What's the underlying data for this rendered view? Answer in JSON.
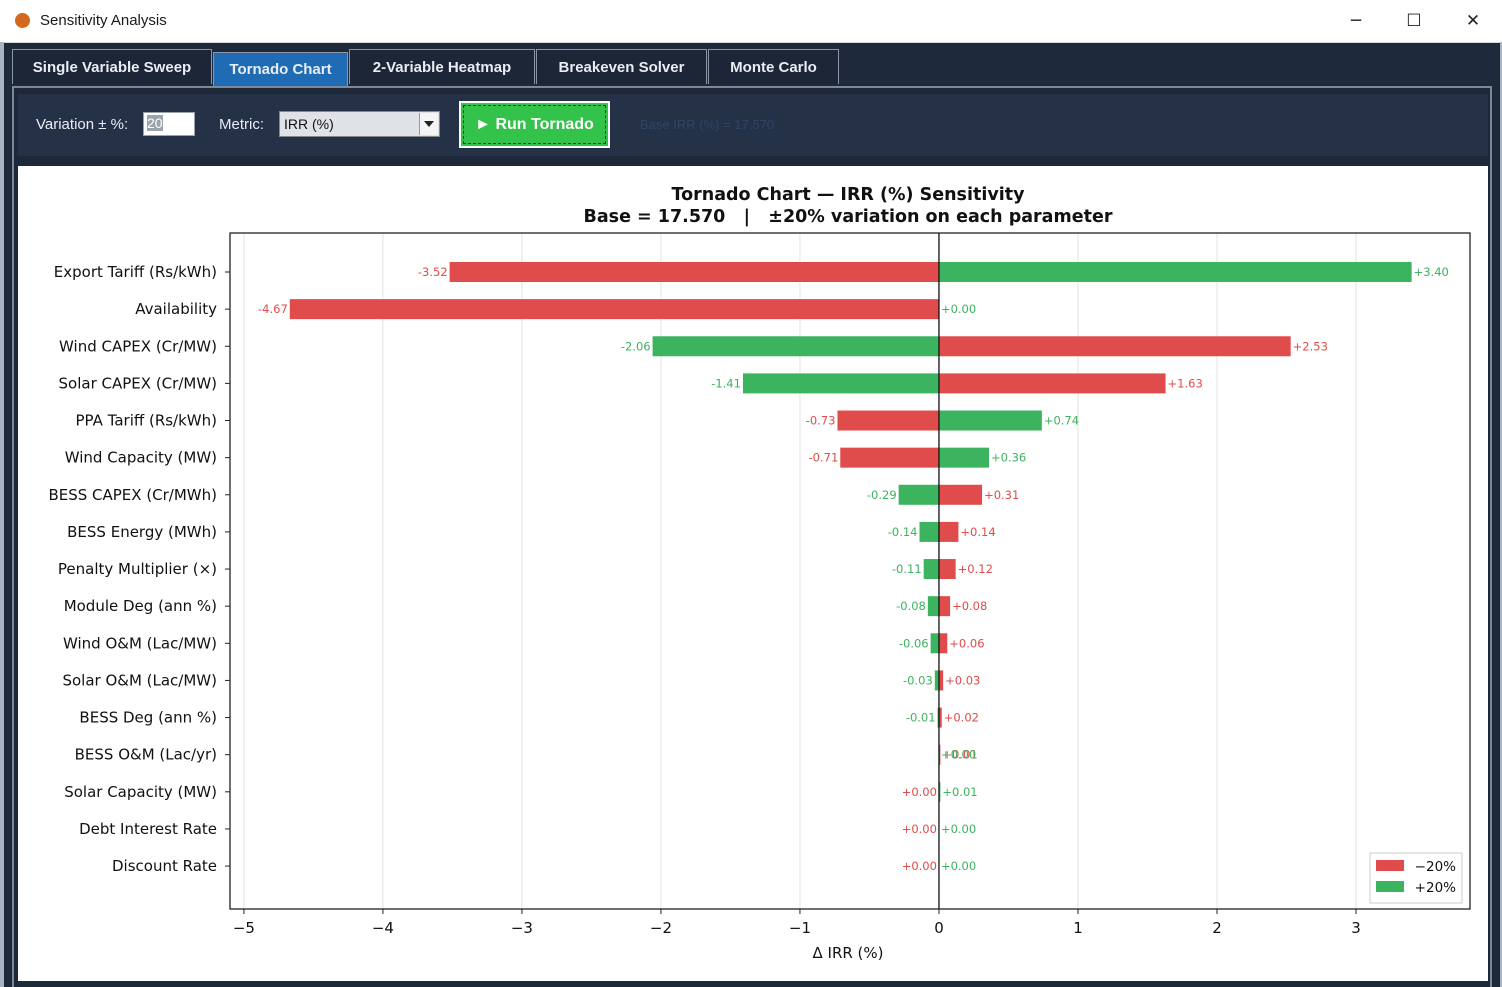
{
  "window": {
    "title": "Sensitivity Analysis",
    "minimize_glyph": "─",
    "maximize_glyph": "☐",
    "close_glyph": "✕"
  },
  "tabs": [
    {
      "label": "Single Variable Sweep",
      "active": false
    },
    {
      "label": "Tornado Chart",
      "active": true
    },
    {
      "label": "2-Variable Heatmap",
      "active": false
    },
    {
      "label": "Breakeven Solver",
      "active": false
    },
    {
      "label": "Monte Carlo",
      "active": false
    }
  ],
  "controls": {
    "variation_label": "Variation ± %:",
    "variation_value": "20",
    "metric_label": "Metric:",
    "metric_value": "IRR (%)",
    "run_label": "► Run Tornado",
    "status_text": "Base IRR (%) = 17.570"
  },
  "colors": {
    "minus": "#e04b4b",
    "plus": "#3cb35f",
    "run_button": "#33c24a",
    "active_tab": "#1f6cb4"
  },
  "chart_data": {
    "type": "bar",
    "orientation": "horizontal",
    "title": "Tornado Chart — IRR (%) Sensitivity",
    "subtitle": "Base = 17.570   |   ±20% variation on each parameter",
    "xlabel": "Δ IRR (%)",
    "ylabel": "",
    "xlim": [
      -5.1,
      3.82
    ],
    "xticks": [
      -5,
      -4,
      -3,
      -2,
      -1,
      0,
      1,
      2,
      3
    ],
    "xtick_labels": [
      "−5",
      "−4",
      "−3",
      "−2",
      "−1",
      "0",
      "1",
      "2",
      "3"
    ],
    "grid": "vertical",
    "legend_position": "bottom-right",
    "categories": [
      "Export Tariff (Rs/kWh)",
      "Availability",
      "Wind CAPEX (Cr/MW)",
      "Solar CAPEX (Cr/MW)",
      "PPA Tariff (Rs/kWh)",
      "Wind Capacity (MW)",
      "BESS CAPEX (Cr/MWh)",
      "BESS Energy (MWh)",
      "Penalty Multiplier (×)",
      "Module Deg (ann %)",
      "Wind O&M (Lac/MW)",
      "Solar O&M (Lac/MW)",
      "BESS Deg (ann %)",
      "BESS O&M (Lac/yr)",
      "Solar Capacity (MW)",
      "Debt Interest Rate",
      "Discount Rate"
    ],
    "series": [
      {
        "name": "−20%",
        "color": "#e04b4b",
        "values": [
          -3.52,
          -4.67,
          2.53,
          1.63,
          -0.73,
          -0.71,
          0.31,
          0.14,
          0.12,
          0.08,
          0.06,
          0.03,
          0.02,
          0.01,
          0.0,
          0.0,
          0.0
        ],
        "labels": [
          "-3.52",
          "-4.67",
          "+2.53",
          "+1.63",
          "-0.73",
          "-0.71",
          "+0.31",
          "+0.14",
          "+0.12",
          "+0.08",
          "+0.06",
          "+0.03",
          "+0.02",
          "+0.01",
          "+0.00",
          "+0.00",
          "+0.00"
        ]
      },
      {
        "name": "+20%",
        "color": "#3cb35f",
        "values": [
          3.4,
          0.0,
          -2.06,
          -1.41,
          0.74,
          0.36,
          -0.29,
          -0.14,
          -0.11,
          -0.08,
          -0.06,
          -0.03,
          -0.01,
          0.0,
          0.01,
          0.0,
          0.0
        ],
        "labels": [
          "+3.40",
          "+0.00",
          "-2.06",
          "-1.41",
          "+0.74",
          "+0.36",
          "-0.29",
          "-0.14",
          "-0.11",
          "-0.08",
          "-0.06",
          "-0.03",
          "-0.01",
          "+0.00",
          "+0.01",
          "+0.00",
          "+0.00"
        ]
      }
    ]
  }
}
